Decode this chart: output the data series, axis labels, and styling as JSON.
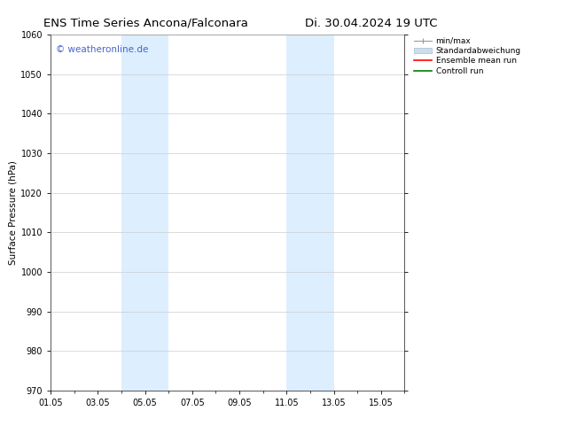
{
  "title_left": "ENS Time Series Ancona/Falconara",
  "title_right": "Di. 30.04.2024 19 UTC",
  "ylabel": "Surface Pressure (hPa)",
  "ylim": [
    970,
    1060
  ],
  "yticks": [
    970,
    980,
    990,
    1000,
    1010,
    1020,
    1030,
    1040,
    1050,
    1060
  ],
  "xlim_start": 0,
  "xlim_end": 15,
  "xtick_labels": [
    "01.05",
    "03.05",
    "05.05",
    "07.05",
    "09.05",
    "11.05",
    "13.05",
    "15.05"
  ],
  "xtick_positions": [
    0,
    2,
    4,
    6,
    8,
    10,
    12,
    14
  ],
  "shaded_bands": [
    {
      "x_start": 3.0,
      "x_end": 5.0,
      "color": "#ddeeff"
    },
    {
      "x_start": 10.0,
      "x_end": 12.0,
      "color": "#ddeeff"
    }
  ],
  "watermark_text": "© weatheronline.de",
  "watermark_color": "#4466cc",
  "legend_labels": [
    "min/max",
    "Standardabweichung",
    "Ensemble mean run",
    "Controll run"
  ],
  "legend_colors": [
    "#aaaaaa",
    "#ccddef",
    "red",
    "green"
  ],
  "bg_color": "#ffffff",
  "grid_color": "#cccccc",
  "border_color": "#555555",
  "title_fontsize": 9.5,
  "axis_fontsize": 7.5,
  "tick_fontsize": 7.0,
  "watermark_fontsize": 7.5,
  "legend_fontsize": 6.5
}
